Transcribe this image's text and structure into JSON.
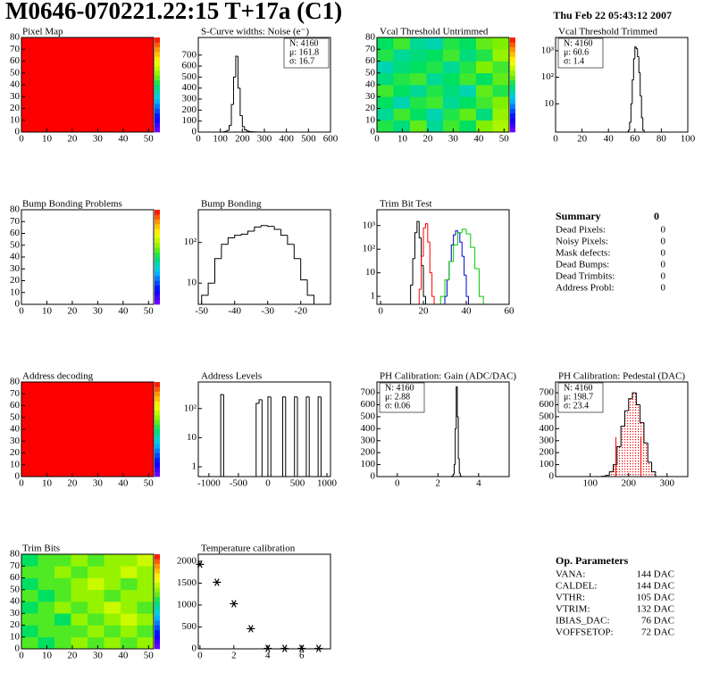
{
  "header": {
    "title": "M0646-070221.22:15 T+17a (C1)",
    "date": "Thu Feb 22 05:43:12 2007"
  },
  "chart_data": [
    {
      "type": "heatmap",
      "title": "Pixel Map",
      "xlim": [
        0,
        52
      ],
      "ylim": [
        0,
        80
      ],
      "xticks": [
        0,
        10,
        20,
        30,
        40,
        50
      ],
      "yticks": [
        0,
        10,
        20,
        30,
        40,
        50,
        60,
        70,
        80
      ],
      "zlim": [
        0,
        10
      ],
      "z": [
        [
          10
        ]
      ]
    },
    {
      "type": "histogram",
      "title": "S-Curve widths: Noise (e⁻)",
      "xlim": [
        0,
        600
      ],
      "ylim": [
        0,
        860
      ],
      "xticks": [
        0,
        100,
        200,
        300,
        400,
        500,
        600
      ],
      "yticks": [
        0,
        100,
        200,
        300,
        400,
        500,
        600,
        700
      ],
      "color": "#000000",
      "bins": [
        100,
        110,
        120,
        130,
        140,
        150,
        160,
        170,
        180,
        190,
        200,
        210,
        220,
        230,
        240,
        250,
        260,
        270,
        280,
        290,
        300
      ],
      "counts": [
        0,
        2,
        5,
        15,
        60,
        250,
        500,
        690,
        400,
        150,
        50,
        20,
        10,
        5,
        3,
        2,
        1,
        1,
        0,
        0
      ],
      "stats": [
        "N: 4160",
        "μ: 161.8",
        "σ: 16.7"
      ],
      "stats_corner": "right"
    },
    {
      "type": "heatmap",
      "title": "Vcal Threshold Untrimmed",
      "xlim": [
        0,
        52
      ],
      "ylim": [
        0,
        80
      ],
      "xticks": [
        0,
        10,
        20,
        30,
        40,
        50
      ],
      "yticks": [
        0,
        10,
        20,
        30,
        40,
        50,
        60,
        70,
        80
      ],
      "zlim": [
        100,
        140
      ],
      "z": [
        [
          121,
          119,
          123,
          118,
          122,
          120,
          124,
          126
        ],
        [
          118,
          122,
          120,
          117,
          121,
          123,
          119,
          125
        ],
        [
          120,
          117,
          121,
          122,
          118,
          120,
          122,
          124
        ],
        [
          122,
          120,
          118,
          121,
          119,
          117,
          123,
          121
        ],
        [
          119,
          121,
          122,
          118,
          120,
          122,
          120,
          123
        ],
        [
          117,
          119,
          120,
          121,
          118,
          121,
          124,
          122
        ],
        [
          121,
          118,
          119,
          120,
          122,
          119,
          121,
          125
        ],
        [
          120,
          122,
          118,
          117,
          121,
          120,
          123,
          124
        ]
      ]
    },
    {
      "type": "histogram",
      "title": "Vcal Threshold Trimmed",
      "log": true,
      "xlim": [
        0,
        100
      ],
      "ylim": [
        0.86,
        3162
      ],
      "xticks": [
        0,
        20,
        40,
        60,
        80,
        100
      ],
      "yticks": [
        10,
        {
          "value": 100,
          "label": "10²"
        },
        {
          "value": 1000,
          "label": "10³"
        }
      ],
      "color": "#000000",
      "bins": [
        55,
        56,
        57,
        58,
        59,
        60,
        61,
        62,
        63,
        64,
        65,
        66,
        67
      ],
      "counts": [
        1,
        2,
        10,
        80,
        500,
        1400,
        1200,
        600,
        150,
        20,
        3,
        1
      ],
      "stats": [
        "N: 4160",
        "μ: 60.6",
        "σ:  1.4"
      ],
      "stats_corner": "left"
    },
    {
      "type": "heatmap",
      "title": "Bump Bonding Problems",
      "xlim": [
        0,
        52
      ],
      "ylim": [
        0,
        80
      ],
      "xticks": [
        0,
        10,
        20,
        30,
        40,
        50
      ],
      "yticks": [
        0,
        10,
        20,
        30,
        40,
        50,
        60,
        70,
        80
      ],
      "zlim": [
        -5,
        5
      ],
      "z": []
    },
    {
      "type": "histogram",
      "title": "Bump Bonding",
      "log": true,
      "xlim": [
        -51,
        -11
      ],
      "ylim": [
        3,
        640
      ],
      "xticks": [
        -50,
        -40,
        -30,
        -20
      ],
      "yticks": [
        10,
        {
          "value": 100,
          "label": "10²"
        }
      ],
      "color": "#000000",
      "bins": [
        -50,
        -48,
        -46,
        -44,
        -42,
        -40,
        -38,
        -36,
        -34,
        -32,
        -30,
        -28,
        -26,
        -24,
        -22,
        -20,
        -18,
        -16
      ],
      "counts": [
        5,
        10,
        40,
        90,
        130,
        150,
        160,
        190,
        240,
        260,
        250,
        210,
        150,
        90,
        40,
        12,
        5
      ]
    },
    {
      "type": "histogram",
      "title": "Trim Bit Test",
      "log": true,
      "xlim": [
        -1.7,
        60
      ],
      "ylim": [
        0.46,
        4700
      ],
      "xticks": [
        0,
        20,
        40,
        60
      ],
      "yticks": [
        1,
        10,
        {
          "value": 100,
          "label": "10²"
        },
        {
          "value": 1000,
          "label": "10³"
        }
      ],
      "series": [
        {
          "color": "#000000",
          "bins": [
            14,
            15,
            16,
            17,
            18,
            19,
            20,
            21
          ],
          "counts": [
            3,
            40,
            500,
            1500,
            300,
            20,
            1
          ]
        },
        {
          "color": "#ff0000",
          "bins": [
            18,
            19,
            20,
            21,
            22,
            23,
            24,
            25
          ],
          "counts": [
            2,
            50,
            800,
            1200,
            200,
            10,
            1
          ]
        },
        {
          "color": "#0000cc",
          "bins": [
            30,
            31,
            32,
            33,
            34,
            35,
            36,
            37,
            38,
            39,
            40,
            41
          ],
          "counts": [
            1,
            5,
            30,
            150,
            400,
            600,
            500,
            200,
            50,
            8,
            1
          ]
        },
        {
          "color": "#00cc00",
          "bins": [
            28,
            30,
            32,
            34,
            36,
            38,
            40,
            42,
            44,
            46,
            48
          ],
          "counts": [
            1,
            5,
            30,
            150,
            500,
            700,
            450,
            120,
            15,
            1
          ]
        }
      ]
    },
    {
      "type": "heatmap",
      "title": "Address decoding",
      "xlim": [
        0,
        52
      ],
      "ylim": [
        0,
        80
      ],
      "xticks": [
        0,
        10,
        20,
        30,
        40,
        50
      ],
      "yticks": [
        0,
        10,
        20,
        30,
        40,
        50,
        60,
        70,
        80
      ],
      "zlim": [
        0,
        1
      ],
      "z": [
        [
          1
        ]
      ]
    },
    {
      "type": "histogram",
      "title": "Address Levels",
      "log": true,
      "xlim": [
        -1180,
        1060
      ],
      "ylim": [
        0.46,
        815
      ],
      "xticks": [
        -1000,
        -500,
        0,
        500,
        1000
      ],
      "yticks": [
        1,
        10,
        {
          "value": 100,
          "label": "10²"
        }
      ],
      "color": "#000000",
      "bins": [
        -1100,
        -1050,
        -1000,
        -950,
        -900,
        -850,
        -800,
        -750,
        -700,
        -650,
        -600,
        -550,
        -500,
        -450,
        -400,
        -350,
        -300,
        -250,
        -200,
        -150,
        -100,
        -50,
        0,
        50,
        100,
        150,
        200,
        250,
        300,
        350,
        400,
        450,
        500,
        550,
        600,
        650,
        700,
        750,
        800,
        850,
        900,
        950,
        1000
      ],
      "counts": [
        0,
        0,
        0,
        0,
        0,
        0,
        300,
        0,
        0,
        0,
        0,
        0,
        0,
        0,
        0,
        0,
        0,
        0,
        150,
        200,
        0,
        0,
        250,
        0,
        0,
        0,
        0,
        250,
        0,
        0,
        0,
        250,
        0,
        0,
        0,
        250,
        0,
        0,
        0,
        250,
        0,
        0
      ]
    },
    {
      "type": "histogram",
      "title": "PH Calibration: Gain (ADC/DAC)",
      "xlim": [
        -1,
        5.5
      ],
      "ylim": [
        0,
        790
      ],
      "xticks": [
        0,
        2,
        4
      ],
      "yticks": [
        0,
        100,
        200,
        300,
        400,
        500,
        600,
        700
      ],
      "color": "#000000",
      "bins": [
        2.6,
        2.65,
        2.7,
        2.75,
        2.8,
        2.85,
        2.9,
        2.95,
        3.0,
        3.05,
        3.1,
        3.15,
        3.2
      ],
      "counts": [
        0,
        2,
        5,
        20,
        100,
        400,
        750,
        500,
        150,
        30,
        5,
        1
      ],
      "stats": [
        "N: 4160",
        "μ: 2.88",
        "σ: 0.06"
      ],
      "stats_corner": "left"
    },
    {
      "type": "histogram",
      "title": "PH Calibration: Pedestal (DAC)",
      "xlim": [
        10,
        354
      ],
      "ylim": [
        0,
        790
      ],
      "xticks": [
        100,
        200,
        300
      ],
      "yticks": [
        0,
        100,
        200,
        300,
        400,
        500,
        600,
        700
      ],
      "color": "#000000",
      "fill": "#ff0000",
      "bins": [
        130,
        140,
        150,
        160,
        170,
        180,
        190,
        200,
        210,
        220,
        230,
        240,
        250,
        260,
        270
      ],
      "counts": [
        3,
        10,
        40,
        100,
        250,
        420,
        550,
        650,
        700,
        600,
        450,
        280,
        120,
        40
      ],
      "fit_range": [
        167,
        232
      ],
      "fit_height": 330,
      "stats": [
        "N: 4160",
        "μ: 198.7",
        "σ: 23.4"
      ],
      "stats_colors": [
        "#000000",
        "#ff0000",
        "#ff0000"
      ],
      "stats_corner": "left"
    },
    {
      "type": "heatmap",
      "title": "Trim Bits",
      "xlim": [
        0,
        52
      ],
      "ylim": [
        0,
        80
      ],
      "xticks": [
        0,
        10,
        20,
        30,
        40,
        50
      ],
      "yticks": [
        0,
        10,
        20,
        30,
        40,
        50,
        60,
        70,
        80
      ],
      "zlim": [
        0,
        16
      ],
      "z": [
        [
          9,
          8,
          9,
          10,
          9,
          10,
          9,
          10
        ],
        [
          8,
          9,
          9,
          9,
          10,
          9,
          10,
          9
        ],
        [
          9,
          9,
          8,
          10,
          9,
          10,
          11,
          10
        ],
        [
          8,
          9,
          10,
          9,
          10,
          11,
          10,
          9
        ],
        [
          9,
          8,
          9,
          10,
          10,
          9,
          10,
          10
        ],
        [
          8,
          9,
          9,
          10,
          11,
          10,
          9,
          10
        ],
        [
          9,
          9,
          10,
          9,
          10,
          10,
          11,
          10
        ],
        [
          8,
          9,
          9,
          10,
          9,
          10,
          10,
          11
        ]
      ]
    },
    {
      "type": "scatter",
      "title": "Temperature calibration",
      "xlim": [
        -0.1,
        7.7
      ],
      "ylim": [
        0,
        2160
      ],
      "xticks": [
        0,
        2,
        4,
        6
      ],
      "yticks": [
        0,
        500,
        1000,
        1500,
        2000
      ],
      "color": "#000000",
      "x": [
        0,
        1,
        2,
        3,
        4,
        5,
        6,
        7
      ],
      "values": [
        1930,
        1520,
        1030,
        460,
        10,
        10,
        10,
        10
      ]
    }
  ],
  "summary": {
    "title": "Summary",
    "total": 0,
    "rows": [
      {
        "label": "Dead Pixels:",
        "value": 0
      },
      {
        "label": "Noisy Pixels:",
        "value": 0
      },
      {
        "label": "Mask defects:",
        "value": 0
      },
      {
        "label": "Dead Bumps:",
        "value": 0
      },
      {
        "label": "Dead Trimbits:",
        "value": 0
      },
      {
        "label": "Address Probl:",
        "value": 0
      }
    ]
  },
  "parameters": {
    "title": "Op. Parameters",
    "rows": [
      {
        "label": "VANA:",
        "value": "144 DAC"
      },
      {
        "label": "CALDEL:",
        "value": "144 DAC"
      },
      {
        "label": "VTHR:",
        "value": "105 DAC"
      },
      {
        "label": "VTRIM:",
        "value": "132 DAC"
      },
      {
        "label": "IBIAS_DAC:",
        "value": "76 DAC"
      },
      {
        "label": "VOFFSETOP:",
        "value": "72 DAC"
      }
    ]
  }
}
